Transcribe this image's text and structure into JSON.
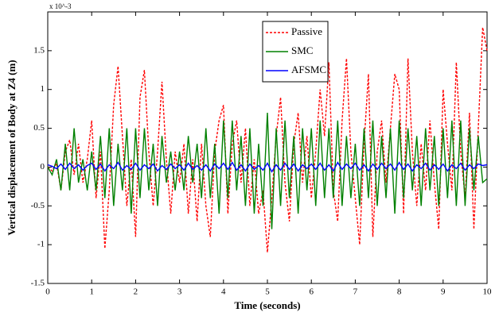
{
  "chart_data": {
    "type": "line",
    "xlabel": "Time (seconds)",
    "ylabel": "Vertical displacement of Body at Z4 (m)",
    "y_multiplier": "x 10^-3",
    "xlim": [
      0,
      10
    ],
    "xticks": [
      0,
      1,
      2,
      3,
      4,
      5,
      6,
      7,
      8,
      9,
      10
    ],
    "ylim": [
      -1.5,
      2
    ],
    "yticks": [
      -1.5,
      -1,
      -0.5,
      0,
      0.5,
      1,
      1.5
    ],
    "legend": "top",
    "x": [
      0,
      0.1,
      0.2,
      0.3,
      0.4,
      0.5,
      0.6,
      0.7,
      0.8,
      0.9,
      1,
      1.1,
      1.2,
      1.3,
      1.4,
      1.5,
      1.6,
      1.7,
      1.8,
      1.9,
      2,
      2.1,
      2.2,
      2.3,
      2.4,
      2.5,
      2.6,
      2.7,
      2.8,
      2.9,
      3,
      3.1,
      3.2,
      3.3,
      3.4,
      3.5,
      3.6,
      3.7,
      3.8,
      3.9,
      4,
      4.1,
      4.2,
      4.3,
      4.4,
      4.5,
      4.6,
      4.7,
      4.8,
      4.9,
      5,
      5.1,
      5.2,
      5.3,
      5.4,
      5.5,
      5.6,
      5.7,
      5.8,
      5.9,
      6,
      6.1,
      6.2,
      6.3,
      6.4,
      6.5,
      6.6,
      6.7,
      6.8,
      6.9,
      7,
      7.1,
      7.2,
      7.3,
      7.4,
      7.5,
      7.6,
      7.7,
      7.8,
      7.9,
      8,
      8.1,
      8.2,
      8.3,
      8.4,
      8.5,
      8.6,
      8.7,
      8.8,
      8.9,
      9,
      9.1,
      9.2,
      9.3,
      9.4,
      9.5,
      9.6,
      9.7,
      9.8,
      9.9,
      10
    ],
    "series": [
      {
        "name": "Passive",
        "color": "#ff0000",
        "dashed": true,
        "values": [
          0,
          -0.05,
          0.05,
          -0.3,
          0.2,
          0.35,
          -0.1,
          0.3,
          -0.2,
          0.1,
          0.6,
          -0.4,
          0.2,
          -1.05,
          -0.3,
          0.8,
          1.3,
          0.4,
          -0.5,
          0.1,
          -0.9,
          0.9,
          1.25,
          0.2,
          -0.5,
          0.2,
          1.1,
          0.1,
          -0.6,
          0.2,
          -0.2,
          0.3,
          -0.6,
          0.1,
          -0.7,
          0.3,
          -0.5,
          -0.9,
          0.2,
          0.6,
          0.8,
          -0.6,
          0.3,
          0.6,
          -0.2,
          0.5,
          -0.5,
          0.1,
          -0.6,
          -0.3,
          -1.1,
          -0.4,
          0.4,
          0.9,
          -0.2,
          -0.7,
          0.3,
          0.7,
          -0.2,
          0.4,
          -0.4,
          0.2,
          1,
          0.4,
          1.35,
          -0.3,
          -0.7,
          0.6,
          1.4,
          0.2,
          -0.4,
          -1,
          0.3,
          1.2,
          -0.9,
          0.2,
          0.6,
          -0.2,
          0.5,
          1.2,
          1,
          -0.6,
          1.4,
          0.2,
          -0.5,
          0.3,
          -0.3,
          0.6,
          -0.2,
          -0.8,
          1,
          0.3,
          -0.3,
          1.35,
          0.2,
          -0.4,
          0.7,
          -0.8,
          0.5,
          1.8,
          1.5
        ]
      },
      {
        "name": "SMC",
        "color": "#008000",
        "dashed": false,
        "values": [
          0,
          -0.1,
          0.1,
          -0.3,
          0.3,
          -0.3,
          0.5,
          -0.2,
          0.1,
          -0.3,
          0.2,
          -0.3,
          0.4,
          -0.4,
          0.5,
          -0.5,
          0.3,
          -0.3,
          0.5,
          -0.6,
          0.5,
          -0.4,
          0.5,
          -0.3,
          0.3,
          -0.5,
          0.4,
          -0.2,
          0.2,
          -0.3,
          0.2,
          -0.3,
          0.4,
          -0.2,
          0.3,
          -0.4,
          0.5,
          -0.4,
          0.3,
          -0.6,
          0.6,
          -0.4,
          0.6,
          -0.3,
          0.4,
          -0.5,
          0.5,
          -0.6,
          0.3,
          -0.5,
          0.7,
          -0.8,
          0.5,
          -0.5,
          0.6,
          -0.4,
          0.4,
          -0.6,
          0.5,
          -0.3,
          0.5,
          -0.5,
          0.6,
          -0.4,
          0.5,
          -0.4,
          0.6,
          -0.5,
          0.4,
          -0.4,
          0.3,
          -0.5,
          0.5,
          -0.4,
          0.6,
          -0.5,
          0.4,
          -0.4,
          0.5,
          -0.6,
          0.6,
          -0.4,
          0.5,
          -0.3,
          0.4,
          -0.5,
          0.5,
          -0.3,
          0.4,
          -0.5,
          0.5,
          -0.4,
          0.6,
          -0.5,
          0.6,
          -0.5,
          0.5,
          -0.3,
          0.4,
          -0.2,
          -0.15
        ]
      },
      {
        "name": "AFSMC",
        "color": "#0000ff",
        "dashed": false,
        "values": [
          0.03,
          0.01,
          -0.02,
          0.04,
          -0.03,
          0.05,
          -0.02,
          0.03,
          -0.04,
          0.02,
          0.05,
          -0.03,
          0.04,
          -0.05,
          0.03,
          -0.02,
          0.06,
          -0.04,
          0.02,
          -0.03,
          0.05,
          -0.04,
          0.03,
          -0.02,
          0.04,
          -0.05,
          0.02,
          -0.03,
          0.04,
          -0.02,
          0.03,
          -0.04,
          0.05,
          -0.03,
          0.02,
          -0.04,
          0.03,
          -0.05,
          0.04,
          -0.02,
          0.05,
          -0.03,
          0.06,
          -0.04,
          0.03,
          -0.05,
          0.04,
          -0.03,
          0.02,
          -0.04,
          0.05,
          -0.06,
          0.03,
          -0.04,
          0.05,
          -0.03,
          0.04,
          -0.05,
          0.03,
          -0.02,
          0.04,
          -0.03,
          0.05,
          -0.04,
          0.03,
          -0.05,
          0.06,
          -0.03,
          0.04,
          -0.02,
          0.05,
          -0.04,
          0.03,
          -0.05,
          0.04,
          -0.03,
          0.05,
          -0.02,
          0.04,
          -0.04,
          0.06,
          -0.03,
          0.04,
          -0.05,
          0.03,
          -0.02,
          0.05,
          -0.04,
          0.03,
          -0.03,
          0.04,
          -0.05,
          0.03,
          -0.02,
          0.05,
          -0.04,
          0.03,
          -0.02,
          0.04,
          0.02,
          0.03
        ]
      }
    ]
  }
}
